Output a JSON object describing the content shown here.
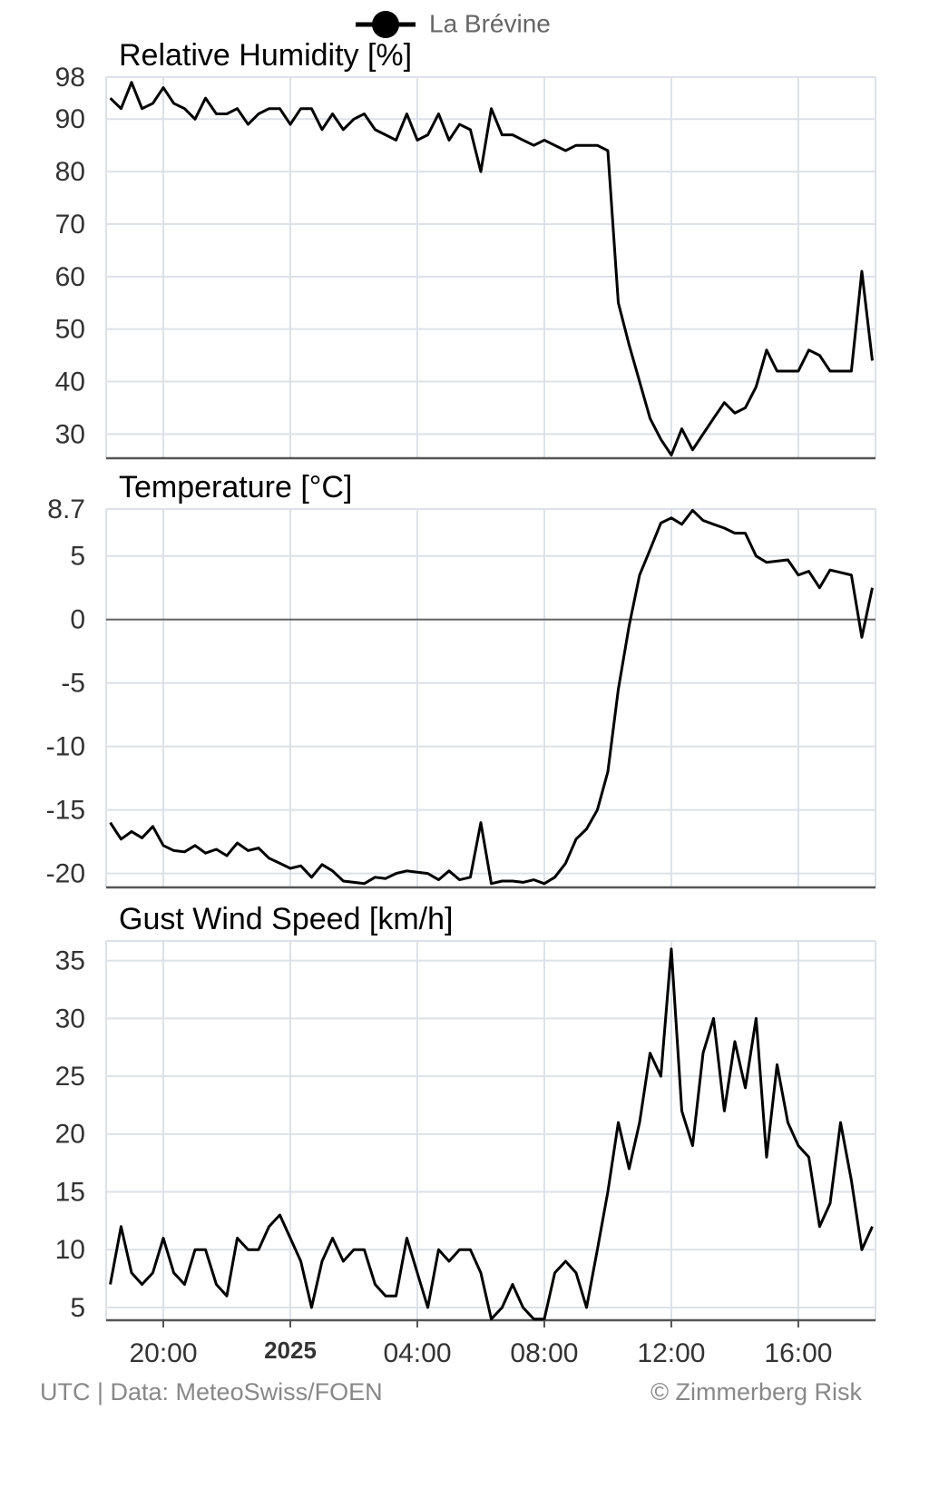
{
  "chart_data": {
    "type": "line",
    "series": [
      {
        "name": "La Brévine",
        "color": "#000000"
      }
    ],
    "x": [
      -5.67,
      -5.33,
      -5,
      -4.67,
      -4.33,
      -4,
      -3.67,
      -3.33,
      -3,
      -2.67,
      -2.33,
      -2,
      -1.67,
      -1.33,
      -1,
      -0.67,
      -0.33,
      0,
      0.33,
      0.67,
      1,
      1.33,
      1.67,
      2,
      2.33,
      2.67,
      3,
      3.33,
      3.67,
      4,
      4.33,
      4.67,
      5,
      5.33,
      5.67,
      6,
      6.33,
      6.67,
      7,
      7.33,
      7.67,
      8,
      8.33,
      8.67,
      9,
      9.33,
      9.67,
      10,
      10.33,
      10.67,
      11,
      11.33,
      11.67,
      12,
      12.33,
      12.67,
      13,
      13.33,
      13.67,
      14,
      14.33,
      14.67,
      15,
      15.33,
      15.67,
      16,
      16.33,
      16.67,
      17,
      17.33,
      17.67,
      18,
      18.33
    ],
    "xlim": [
      -5.8,
      18.43
    ],
    "xticks": [
      {
        "value": -4,
        "label": "20:00"
      },
      {
        "value": 0,
        "label": "2025"
      },
      {
        "value": 4,
        "label": "04:00"
      },
      {
        "value": 8,
        "label": "08:00"
      },
      {
        "value": 12,
        "label": "12:00"
      },
      {
        "value": 16,
        "label": "16:00"
      }
    ],
    "grid": true,
    "panels": [
      {
        "title": "Relative Humidity [%]",
        "values": [
          94,
          92,
          97,
          92,
          93,
          96,
          93,
          92,
          90,
          94,
          91,
          91,
          92,
          89,
          91,
          92,
          92,
          89,
          92,
          92,
          88,
          91,
          88,
          90,
          91,
          88,
          87,
          86,
          91,
          86,
          87,
          91,
          86,
          89,
          88,
          80,
          92,
          87,
          87,
          86,
          85,
          86,
          85,
          84,
          85,
          85,
          85,
          84,
          55,
          47,
          40,
          33,
          29,
          26,
          31,
          27,
          30,
          33,
          36,
          34,
          35,
          39,
          46,
          42,
          42,
          42,
          46,
          45,
          42,
          42,
          42,
          61,
          44
        ],
        "ylim": [
          25.4,
          98
        ],
        "yticks": [
          30,
          40,
          50,
          60,
          70,
          80,
          90,
          98
        ]
      },
      {
        "title": "Temperature [°C]",
        "values": [
          -16.0,
          -17.3,
          -16.7,
          -17.2,
          -16.3,
          -17.8,
          -18.2,
          -18.3,
          -17.8,
          -18.4,
          -18.1,
          -18.6,
          -17.6,
          -18.2,
          -18.0,
          -18.8,
          -19.2,
          -19.6,
          -19.4,
          -20.3,
          -19.3,
          -19.8,
          -20.6,
          -20.7,
          -20.8,
          -20.3,
          -20.4,
          -20.0,
          -19.8,
          -19.9,
          -20.0,
          -20.5,
          -19.8,
          -20.5,
          -20.3,
          -16.0,
          -20.8,
          -20.6,
          -20.6,
          -20.7,
          -20.5,
          -20.8,
          -20.3,
          -19.2,
          -17.3,
          -16.5,
          -15.0,
          -12.0,
          -5.5,
          -0.5,
          3.5,
          5.5,
          7.6,
          8.0,
          7.5,
          8.6,
          7.8,
          7.5,
          7.2,
          6.8,
          6.8,
          5.0,
          4.5,
          4.6,
          4.7,
          3.5,
          3.8,
          2.5,
          3.9,
          3.7,
          3.5,
          -1.4,
          2.5
        ],
        "ylim": [
          -21.1,
          8.7
        ],
        "yticks": [
          -20,
          -15,
          -10,
          -5,
          0,
          5,
          8.7
        ]
      },
      {
        "title": "Gust Wind Speed [km/h]",
        "values": [
          7,
          12,
          8,
          7,
          8,
          11,
          8,
          7,
          10,
          10,
          7,
          6,
          11,
          10,
          10,
          12,
          13,
          11,
          9,
          5,
          9,
          11,
          9,
          10,
          10,
          7,
          6,
          6,
          11,
          8,
          5,
          10,
          9,
          10,
          10,
          8,
          4,
          5,
          7,
          5,
          4,
          4,
          8,
          9,
          8,
          5,
          10,
          15,
          21,
          17,
          21,
          27,
          25,
          36,
          22,
          19,
          27,
          30,
          22,
          28,
          24,
          30,
          18,
          26,
          21,
          19,
          18,
          12,
          14,
          21,
          16,
          10,
          12
        ],
        "ylim": [
          3.9,
          36.7
        ],
        "yticks": [
          5,
          10,
          15,
          20,
          25,
          30,
          35
        ]
      }
    ],
    "source": "UTC | Data: MeteoSwiss/FOEN",
    "credit": "© Zimmerberg Risk"
  }
}
